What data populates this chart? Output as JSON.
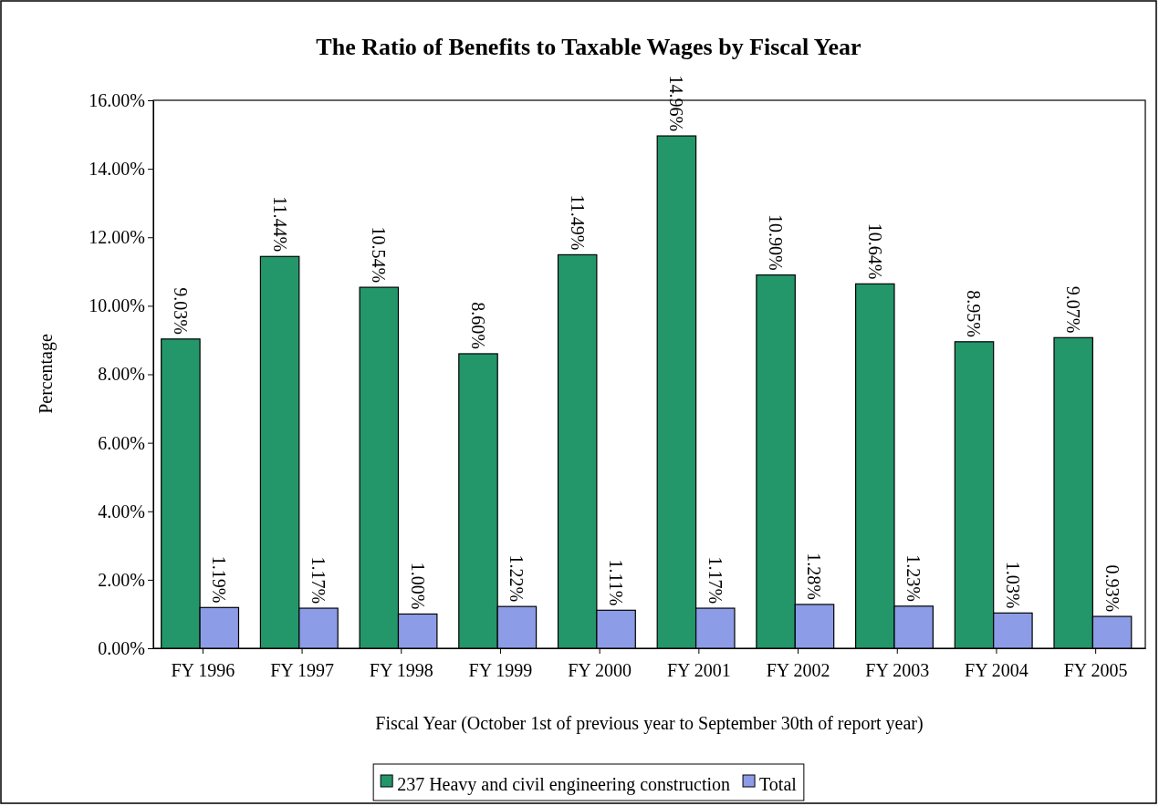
{
  "chart_data": {
    "type": "bar",
    "title": "The Ratio of Benefits to Taxable Wages by Fiscal Year",
    "xlabel": "Fiscal Year (October 1st of previous year to September 30th of report year)",
    "ylabel": "Percentage",
    "categories": [
      "FY 1996",
      "FY 1997",
      "FY 1998",
      "FY 1999",
      "FY 2000",
      "FY 2001",
      "FY 2002",
      "FY 2003",
      "FY 2004",
      "FY 2005"
    ],
    "series": [
      {
        "name": "237 Heavy and civil engineering construction",
        "color": "#23966a",
        "values": [
          9.03,
          11.44,
          10.54,
          8.6,
          11.49,
          14.96,
          10.9,
          10.64,
          8.95,
          9.07
        ],
        "value_labels": [
          "9.03%",
          "11.44%",
          "10.54%",
          "8.60%",
          "11.49%",
          "14.96%",
          "10.90%",
          "10.64%",
          "8.95%",
          "9.07%"
        ]
      },
      {
        "name": "Total",
        "color": "#8c9ce6",
        "values": [
          1.19,
          1.17,
          1.0,
          1.22,
          1.11,
          1.17,
          1.28,
          1.23,
          1.03,
          0.93
        ],
        "value_labels": [
          "1.19%",
          "1.17%",
          "1.00%",
          "1.22%",
          "1.11%",
          "1.17%",
          "1.28%",
          "1.23%",
          "1.03%",
          "0.93%"
        ]
      }
    ],
    "ylim": [
      0,
      16
    ],
    "yticks": [
      {
        "value": 0,
        "label": "0.00%"
      },
      {
        "value": 2,
        "label": "2.00%"
      },
      {
        "value": 4,
        "label": "4.00%"
      },
      {
        "value": 6,
        "label": "6.00%"
      },
      {
        "value": 8,
        "label": "8.00%"
      },
      {
        "value": 10,
        "label": "10.00%"
      },
      {
        "value": 12,
        "label": "12.00%"
      },
      {
        "value": 14,
        "label": "14.00%"
      },
      {
        "value": 16,
        "label": "16.00%"
      }
    ],
    "legend": "bottom"
  }
}
